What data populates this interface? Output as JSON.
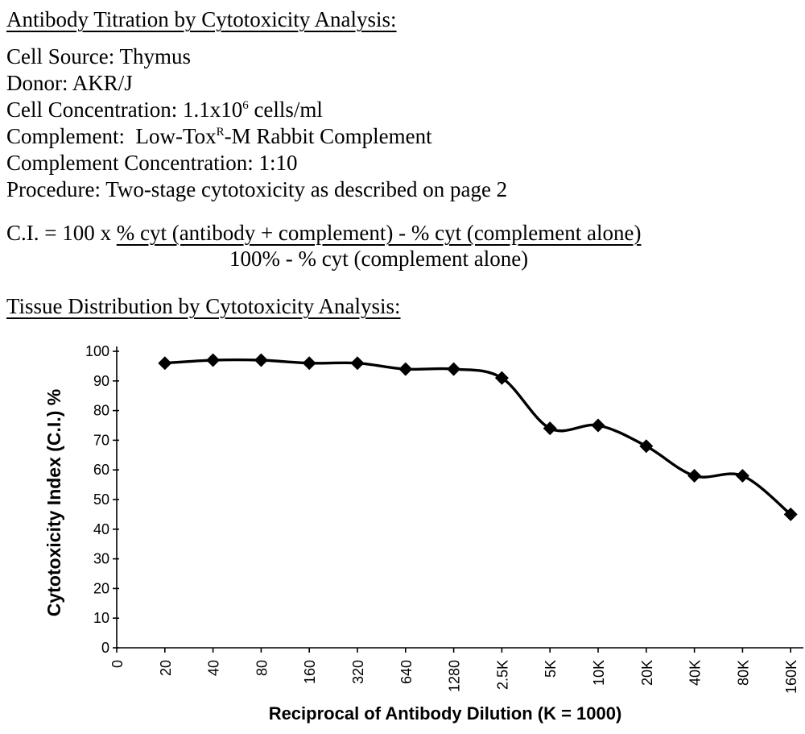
{
  "document": {
    "heading_titration": "Antibody Titration by Cytotoxicity Analysis:",
    "info": {
      "cell_source": "Cell Source: Thymus",
      "donor": "Donor: AKR/J",
      "cell_concentration_pre": "Cell Concentration: 1.1x10",
      "cell_concentration_sup": "6",
      "cell_concentration_post": " cells/ml",
      "complement_pre": "Complement:  Low-Tox",
      "complement_sup": "R",
      "complement_post": "-M Rabbit Complement",
      "complement_concentration": "Complement Concentration: 1:10",
      "procedure": "Procedure: Two-stage cytotoxicity as described on page 2"
    },
    "formula": {
      "lhs": "C.I. = 100 x ",
      "numerator": "% cyt (antibody + complement) - % cyt (complement alone)",
      "denominator": "100% - % cyt (complement alone)"
    },
    "heading_tissue": "Tissue Distribution by Cytotoxicity Analysis:"
  },
  "chart_data": {
    "type": "line",
    "title": "",
    "xlabel": "Reciprocal of Antibody Dilution (K = 1000)",
    "ylabel": "Cytotoxicity Index (C.I.) %",
    "x_tick_labels": [
      "0",
      "20",
      "40",
      "80",
      "160",
      "320",
      "640",
      "1280",
      "2.5K",
      "5K",
      "10K",
      "20K",
      "40K",
      "80K",
      "160K"
    ],
    "categories": [
      "20",
      "40",
      "80",
      "160",
      "320",
      "640",
      "1280",
      "2.5K",
      "5K",
      "10K",
      "20K",
      "40K",
      "80K",
      "160K"
    ],
    "values": [
      96,
      97,
      97,
      96,
      96,
      94,
      94,
      91,
      74,
      75,
      68,
      58,
      58,
      45
    ],
    "y_ticks": [
      0,
      10,
      20,
      30,
      40,
      50,
      60,
      70,
      80,
      90,
      100
    ],
    "ylim": [
      0,
      100
    ],
    "marker": "diamond",
    "line_color": "#000000",
    "grid": false,
    "legend": false
  }
}
